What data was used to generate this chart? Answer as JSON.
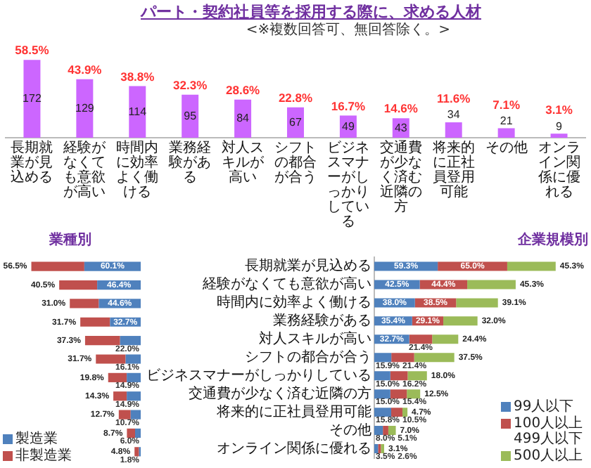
{
  "chart_data": [
    {
      "type": "bar",
      "title": "パート・契約社員等を採用する際に、求める人材",
      "subtitle": "<※複数回答可、無回答除く。>",
      "categories": [
        "長期就業が見込める",
        "経験がなくても意欲が高い",
        "時間内に効率よく働ける",
        "業務経験がある",
        "対人スキルが高い",
        "シフトの都合が合う",
        "ビジネスマナーがしっかりしている",
        "交通費が少なく済む近隣の方",
        "将来的に正社員登用可能",
        "その他",
        "オンライン関係に優れる"
      ],
      "values": [
        172,
        129,
        114,
        95,
        84,
        67,
        49,
        43,
        34,
        21,
        9
      ],
      "color": "#cc66ff",
      "ylim": [
        0,
        180
      ],
      "data_labels": true,
      "tick_labels": "x",
      "annotations": [
        {
          "text": "58.5%",
          "x": "長期就業が見込める",
          "y": 172
        },
        {
          "text": "43.9%",
          "x": "経験がなくても意欲が高い",
          "y": 129
        },
        {
          "text": "38.8%",
          "x": "時間内に効率よく働ける",
          "y": 114
        },
        {
          "text": "32.3%",
          "x": "業務経験がある",
          "y": 95
        },
        {
          "text": "28.6%",
          "x": "対人スキルが高い",
          "y": 84
        },
        {
          "text": "22.8%",
          "x": "シフトの都合が合う",
          "y": 67
        },
        {
          "text": "16.7%",
          "x": "ビジネスマナーがしっかりしている",
          "y": 49
        },
        {
          "text": "14.6%",
          "x": "交通費が少なく済む近隣の方",
          "y": 43
        },
        {
          "text": "11.6%",
          "x": "将来的に正社員登用可能",
          "y": 34
        },
        {
          "text": "7.1%",
          "x": "その他",
          "y": 21
        },
        {
          "text": "3.1%",
          "x": "オンライン関係に優れる",
          "y": 9
        }
      ]
    },
    {
      "type": "bar",
      "title": "業種別",
      "orientation": "horizontal",
      "stacked": true,
      "categories": [
        "長期就業が見込める",
        "経験がなくても意欲が高い",
        "時間内に効率よく働ける",
        "業務経験がある",
        "対人スキルが高い",
        "シフトの都合が合う",
        "ビジネスマナーがしっかりしている",
        "交通費が少なく済む近隣の方",
        "将来的に正社員登用可能",
        "その他",
        "オンライン関係に優れる"
      ],
      "xlim": [
        150,
        0
      ],
      "tick_labels": false,
      "legend": "bottom left",
      "series": [
        {
          "name": "製造業",
          "color": "#4f81bd",
          "values": [
            60.1,
            46.4,
            44.6,
            32.7,
            22.0,
            16.1,
            14.9,
            14.9,
            10.7,
            6.0,
            1.8
          ],
          "value_labels": [
            "60.1%",
            "46.4%",
            "44.6%",
            "32.7%",
            "22.0%",
            "16.1%",
            "14.9%",
            "14.9%",
            "10.7%",
            "6.0%",
            "1.8%"
          ]
        },
        {
          "name": "非製造業",
          "color": "#c0504d",
          "values": [
            56.5,
            40.5,
            31.0,
            31.7,
            37.3,
            31.7,
            19.8,
            14.3,
            12.7,
            8.7,
            4.8
          ],
          "value_labels": [
            "56.5%",
            "40.5%",
            "31.0%",
            "31.7%",
            "37.3%",
            "31.7%",
            "19.8%",
            "14.3%",
            "12.7%",
            "8.7%",
            "4.8%"
          ]
        }
      ]
    },
    {
      "type": "bar",
      "title": "企業規模別",
      "orientation": "horizontal",
      "stacked": true,
      "categories": [
        "長期就業が見込める",
        "経験がなくても意欲が高い",
        "時間内に効率よく働ける",
        "業務経験がある",
        "対人スキルが高い",
        "シフトの都合が合う",
        "ビジネスマナーがしっかりしている",
        "交通費が少なく済む近隣の方",
        "将来的に正社員登用可能",
        "その他",
        "オンライン関係に優れる"
      ],
      "tick_labels": "y",
      "legend": "bottom right",
      "series": [
        {
          "name": "99人以下",
          "color": "#4f81bd",
          "values": [
            59.3,
            42.5,
            38.0,
            35.4,
            32.7,
            15.9,
            15.0,
            15.0,
            15.8,
            8.0,
            3.5
          ],
          "value_labels": [
            "59.3%",
            "42.5%",
            "38.0%",
            "35.4%",
            "32.7%",
            "15.9%",
            "15.0%",
            "15.0%",
            "15.8%",
            "8.0%",
            "3.5%"
          ]
        },
        {
          "name": "100人以上499人以下",
          "color": "#c0504d",
          "values": [
            65.0,
            44.4,
            38.5,
            29.1,
            21.4,
            21.4,
            16.2,
            15.4,
            10.5,
            5.1,
            2.6
          ],
          "value_labels": [
            "65.0%",
            "44.4%",
            "38.5%",
            "29.1%",
            "21.4%",
            "21.4%",
            "16.2%",
            "15.4%",
            "10.5%",
            "5.1%",
            "2.6%"
          ]
        },
        {
          "name": "500人以上",
          "color": "#9bbb59",
          "values": [
            45.3,
            45.3,
            39.1,
            32.0,
            24.4,
            37.5,
            18.0,
            12.5,
            4.7,
            7.0,
            3.1
          ],
          "value_labels": [
            "45.3%",
            "45.3%",
            "39.1%",
            "32.0%",
            "24.4%",
            "37.5%",
            "18.0%",
            "12.5%",
            "4.7%",
            "7.0%",
            "3.1%"
          ]
        }
      ]
    }
  ]
}
